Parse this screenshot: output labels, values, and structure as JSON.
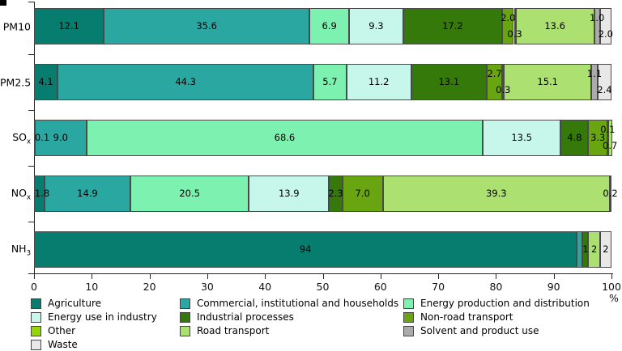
{
  "axis": {
    "unit_label": "%"
  },
  "chart_data": {
    "type": "bar",
    "orientation": "horizontal",
    "stacked": true,
    "title": "",
    "xlabel": "%",
    "xlim": [
      0,
      100
    ],
    "x_ticks": [
      0,
      10,
      20,
      30,
      40,
      50,
      60,
      70,
      80,
      90,
      100
    ],
    "grid": false,
    "legend_position": "bottom",
    "categories": [
      "PM10",
      "PM2.5",
      "SOx",
      "NOx",
      "NH3"
    ],
    "category_labels": [
      {
        "base": "PM10",
        "sub": ""
      },
      {
        "base": "PM2.5",
        "sub": ""
      },
      {
        "base": "SO",
        "sub": "x"
      },
      {
        "base": "NO",
        "sub": "x"
      },
      {
        "base": "NH",
        "sub": "3"
      }
    ],
    "series": [
      {
        "name": "Agriculture",
        "color": "#077d70",
        "values": [
          12.1,
          4.1,
          0.1,
          1.8,
          94
        ],
        "labels": [
          "12.1",
          "4.1",
          "0.1",
          "1.8",
          "94"
        ],
        "label_pos": [
          "in",
          "in",
          "in",
          "in",
          "in"
        ]
      },
      {
        "name": "Commercial, institutional and households",
        "color": "#2aa7a0",
        "values": [
          35.6,
          44.3,
          9.0,
          14.9,
          1.0
        ],
        "labels": [
          "35.6",
          "44.3",
          "9.0",
          "14.9",
          ""
        ],
        "label_pos": [
          "in",
          "in",
          "in",
          "in",
          "in"
        ]
      },
      {
        "name": "Energy production and distribution",
        "color": "#7df2b0",
        "values": [
          6.9,
          5.7,
          68.6,
          20.5,
          0
        ],
        "labels": [
          "6.9",
          "5.7",
          "68.6",
          "20.5",
          ""
        ],
        "label_pos": [
          "in",
          "in",
          "in",
          "in",
          "in"
        ]
      },
      {
        "name": "Energy use in industry",
        "color": "#c7f7eb",
        "values": [
          9.3,
          11.2,
          13.5,
          13.9,
          0
        ],
        "labels": [
          "9.3",
          "11.2",
          "13.5",
          "13.9",
          ""
        ],
        "label_pos": [
          "in",
          "in",
          "in",
          "in",
          "in"
        ]
      },
      {
        "name": "Industrial processes",
        "color": "#35790b",
        "values": [
          17.2,
          13.1,
          4.8,
          2.3,
          1.0
        ],
        "labels": [
          "17.2",
          "13.1",
          "4.8",
          "2.3",
          "1"
        ],
        "label_pos": [
          "in",
          "in",
          "in",
          "in",
          "in"
        ]
      },
      {
        "name": "Non-road transport",
        "color": "#68a511",
        "values": [
          2.0,
          2.7,
          3.3,
          7.0,
          0
        ],
        "labels": [
          "2.0",
          "2.7",
          "3.3",
          "7.0",
          ""
        ],
        "label_pos": [
          "up",
          "up",
          "in",
          "in",
          "in"
        ]
      },
      {
        "name": "Other",
        "color": "#96d606",
        "values": [
          0.3,
          0.3,
          0.1,
          0,
          0
        ],
        "labels": [
          "0.3",
          "0.3",
          "0.1",
          "",
          ""
        ],
        "label_pos": [
          "down",
          "down",
          "up",
          "in",
          "in"
        ]
      },
      {
        "name": "Road transport",
        "color": "#ace172",
        "values": [
          13.6,
          15.1,
          0.7,
          39.3,
          2.0
        ],
        "labels": [
          "13.6",
          "15.1",
          "0.7",
          "39.3",
          "2"
        ],
        "label_pos": [
          "in",
          "in",
          "down",
          "in",
          "in"
        ]
      },
      {
        "name": "Solvent and product use",
        "color": "#ababab",
        "values": [
          1.0,
          1.1,
          0,
          0,
          0
        ],
        "labels": [
          "1.0",
          "1.1",
          "",
          "",
          ""
        ],
        "label_pos": [
          "up",
          "up",
          "in",
          "in",
          "in"
        ]
      },
      {
        "name": "Waste",
        "color": "#e8e8e8",
        "values": [
          2.0,
          2.4,
          0,
          0.2,
          2.0
        ],
        "labels": [
          "2.0",
          "2.4",
          "",
          "0.2",
          "2"
        ],
        "label_pos": [
          "down",
          "down",
          "in",
          "in",
          "in"
        ]
      }
    ]
  },
  "legend": {
    "items": [
      {
        "label": "Agriculture",
        "color": "#077d70"
      },
      {
        "label": "Commercial, institutional and households",
        "color": "#2aa7a0"
      },
      {
        "label": "Energy production and distribution",
        "color": "#7df2b0"
      },
      {
        "label": "Energy use in industry",
        "color": "#c7f7eb"
      },
      {
        "label": "Industrial processes",
        "color": "#35790b"
      },
      {
        "label": "Non-road transport",
        "color": "#68a511"
      },
      {
        "label": "Other",
        "color": "#96d606"
      },
      {
        "label": "Road transport",
        "color": "#ace172"
      },
      {
        "label": "Solvent and product use",
        "color": "#ababab"
      },
      {
        "label": "Waste",
        "color": "#e8e8e8"
      }
    ]
  }
}
